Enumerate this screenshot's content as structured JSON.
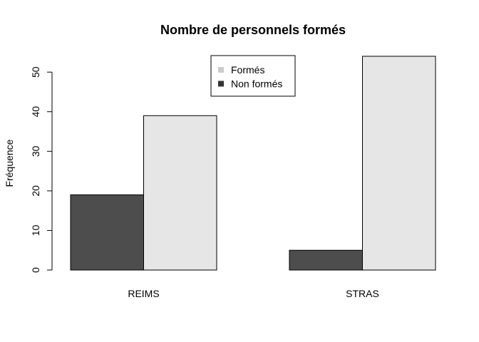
{
  "chart_data": {
    "type": "bar",
    "title": "Nombre de personnels formés",
    "xlabel": "",
    "ylabel": "Fréquence",
    "categories": [
      "REIMS",
      "STRAS"
    ],
    "series": [
      {
        "name": "Non formés",
        "values": [
          19,
          5
        ],
        "color": "#4d4d4d"
      },
      {
        "name": "Formés",
        "values": [
          39,
          54
        ],
        "color": "#e6e6e6"
      }
    ],
    "ylim": [
      0,
      54
    ],
    "yticks": [
      0,
      10,
      20,
      30,
      40,
      50
    ],
    "legend": {
      "position": "top-center",
      "entries": [
        {
          "label": "Formés",
          "color": "#cccccc"
        },
        {
          "label": "Non formés",
          "color": "#333333"
        }
      ]
    },
    "grid": false
  }
}
